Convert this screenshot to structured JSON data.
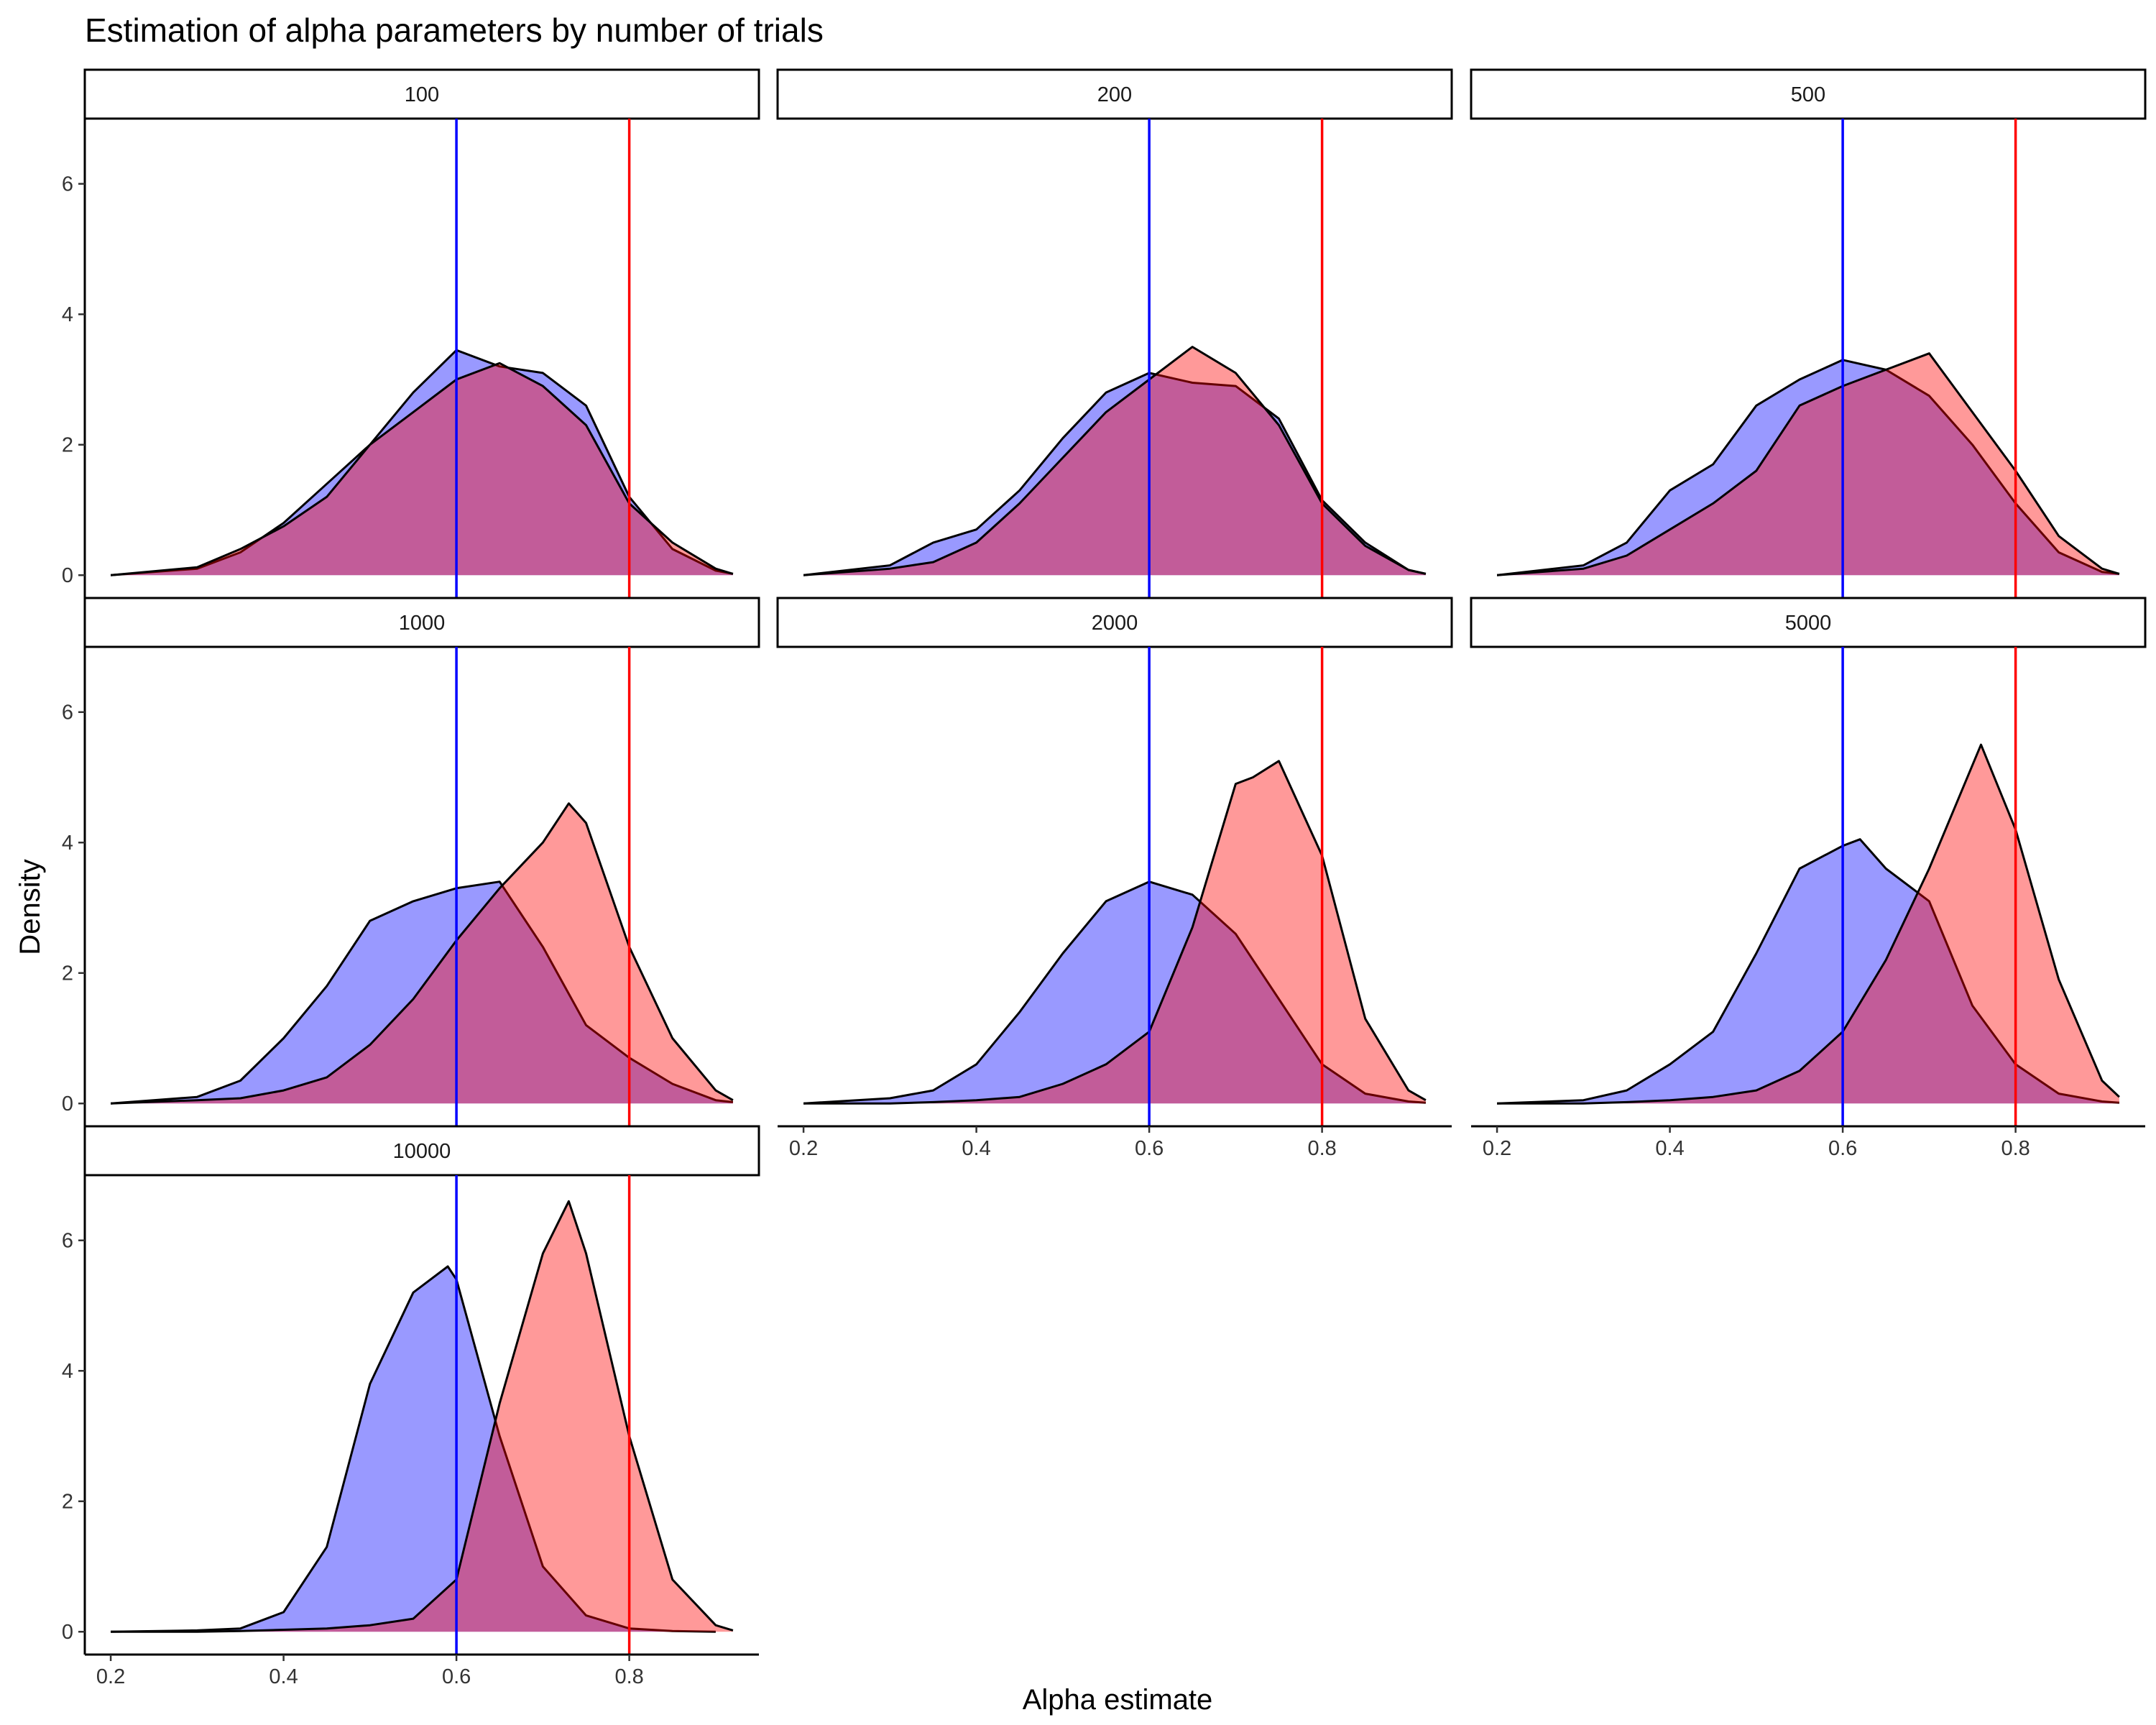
{
  "chart_data": {
    "type": "area",
    "title": "Estimation of alpha parameters by number of trials",
    "xlabel": "Alpha estimate",
    "ylabel": "Density",
    "xlim": [
      0.17,
      0.95
    ],
    "ylim": [
      -0.35,
      7
    ],
    "x_ticks": [
      0.2,
      0.4,
      0.6,
      0.8
    ],
    "y_ticks": [
      0,
      2,
      4,
      6
    ],
    "grid": false,
    "fill_colors": {
      "blue": "#0000ff",
      "red": "#ff0000"
    },
    "fill_opacity": 0.4,
    "reference_lines": [
      {
        "x": 0.6,
        "color": "#0000ff"
      },
      {
        "x": 0.8,
        "color": "#ff0000"
      }
    ],
    "panels": [
      {
        "label": "100",
        "blue": [
          [
            0.2,
            0
          ],
          [
            0.3,
            0.1
          ],
          [
            0.35,
            0.35
          ],
          [
            0.4,
            0.8
          ],
          [
            0.45,
            1.4
          ],
          [
            0.5,
            2.0
          ],
          [
            0.55,
            2.8
          ],
          [
            0.6,
            3.45
          ],
          [
            0.65,
            3.2
          ],
          [
            0.7,
            3.1
          ],
          [
            0.75,
            2.6
          ],
          [
            0.8,
            1.2
          ],
          [
            0.85,
            0.4
          ],
          [
            0.9,
            0.07
          ],
          [
            0.92,
            0.02
          ]
        ],
        "red": [
          [
            0.2,
            0
          ],
          [
            0.3,
            0.12
          ],
          [
            0.35,
            0.4
          ],
          [
            0.4,
            0.75
          ],
          [
            0.45,
            1.2
          ],
          [
            0.5,
            2.0
          ],
          [
            0.55,
            2.5
          ],
          [
            0.6,
            3.0
          ],
          [
            0.65,
            3.25
          ],
          [
            0.7,
            2.9
          ],
          [
            0.75,
            2.3
          ],
          [
            0.8,
            1.1
          ],
          [
            0.85,
            0.5
          ],
          [
            0.9,
            0.1
          ],
          [
            0.92,
            0.02
          ]
        ]
      },
      {
        "label": "200",
        "blue": [
          [
            0.2,
            0
          ],
          [
            0.3,
            0.15
          ],
          [
            0.35,
            0.5
          ],
          [
            0.4,
            0.7
          ],
          [
            0.45,
            1.3
          ],
          [
            0.5,
            2.1
          ],
          [
            0.55,
            2.8
          ],
          [
            0.6,
            3.1
          ],
          [
            0.65,
            2.95
          ],
          [
            0.7,
            2.9
          ],
          [
            0.75,
            2.4
          ],
          [
            0.8,
            1.15
          ],
          [
            0.85,
            0.5
          ],
          [
            0.9,
            0.08
          ],
          [
            0.92,
            0.02
          ]
        ],
        "red": [
          [
            0.2,
            0
          ],
          [
            0.3,
            0.1
          ],
          [
            0.35,
            0.2
          ],
          [
            0.4,
            0.5
          ],
          [
            0.45,
            1.1
          ],
          [
            0.5,
            1.8
          ],
          [
            0.55,
            2.5
          ],
          [
            0.6,
            3.0
          ],
          [
            0.65,
            3.5
          ],
          [
            0.7,
            3.1
          ],
          [
            0.75,
            2.3
          ],
          [
            0.8,
            1.1
          ],
          [
            0.85,
            0.45
          ],
          [
            0.9,
            0.08
          ],
          [
            0.92,
            0.02
          ]
        ]
      },
      {
        "label": "500",
        "blue": [
          [
            0.2,
            0
          ],
          [
            0.3,
            0.15
          ],
          [
            0.35,
            0.5
          ],
          [
            0.4,
            1.3
          ],
          [
            0.45,
            1.7
          ],
          [
            0.5,
            2.6
          ],
          [
            0.55,
            3.0
          ],
          [
            0.6,
            3.3
          ],
          [
            0.65,
            3.15
          ],
          [
            0.7,
            2.75
          ],
          [
            0.75,
            2.0
          ],
          [
            0.8,
            1.1
          ],
          [
            0.85,
            0.35
          ],
          [
            0.9,
            0.05
          ],
          [
            0.92,
            0.02
          ]
        ],
        "red": [
          [
            0.2,
            0
          ],
          [
            0.3,
            0.1
          ],
          [
            0.35,
            0.3
          ],
          [
            0.4,
            0.7
          ],
          [
            0.45,
            1.1
          ],
          [
            0.5,
            1.6
          ],
          [
            0.55,
            2.6
          ],
          [
            0.6,
            2.9
          ],
          [
            0.65,
            3.15
          ],
          [
            0.7,
            3.4
          ],
          [
            0.75,
            2.5
          ],
          [
            0.8,
            1.6
          ],
          [
            0.85,
            0.6
          ],
          [
            0.9,
            0.1
          ],
          [
            0.92,
            0.02
          ]
        ]
      },
      {
        "label": "1000",
        "blue": [
          [
            0.2,
            0
          ],
          [
            0.3,
            0.1
          ],
          [
            0.35,
            0.35
          ],
          [
            0.4,
            1.0
          ],
          [
            0.45,
            1.8
          ],
          [
            0.5,
            2.8
          ],
          [
            0.55,
            3.1
          ],
          [
            0.6,
            3.3
          ],
          [
            0.65,
            3.4
          ],
          [
            0.7,
            2.4
          ],
          [
            0.75,
            1.2
          ],
          [
            0.8,
            0.7
          ],
          [
            0.85,
            0.3
          ],
          [
            0.9,
            0.05
          ],
          [
            0.92,
            0.02
          ]
        ],
        "red": [
          [
            0.2,
            0
          ],
          [
            0.3,
            0.05
          ],
          [
            0.35,
            0.08
          ],
          [
            0.4,
            0.2
          ],
          [
            0.45,
            0.4
          ],
          [
            0.5,
            0.9
          ],
          [
            0.55,
            1.6
          ],
          [
            0.6,
            2.5
          ],
          [
            0.65,
            3.3
          ],
          [
            0.7,
            4.0
          ],
          [
            0.73,
            4.6
          ],
          [
            0.75,
            4.3
          ],
          [
            0.8,
            2.4
          ],
          [
            0.85,
            1.0
          ],
          [
            0.9,
            0.2
          ],
          [
            0.92,
            0.05
          ]
        ]
      },
      {
        "label": "2000",
        "blue": [
          [
            0.2,
            0
          ],
          [
            0.3,
            0.08
          ],
          [
            0.35,
            0.2
          ],
          [
            0.4,
            0.6
          ],
          [
            0.45,
            1.4
          ],
          [
            0.5,
            2.3
          ],
          [
            0.55,
            3.1
          ],
          [
            0.6,
            3.4
          ],
          [
            0.65,
            3.2
          ],
          [
            0.7,
            2.6
          ],
          [
            0.75,
            1.6
          ],
          [
            0.8,
            0.6
          ],
          [
            0.85,
            0.15
          ],
          [
            0.9,
            0.03
          ],
          [
            0.92,
            0.01
          ]
        ],
        "red": [
          [
            0.2,
            0
          ],
          [
            0.3,
            0
          ],
          [
            0.35,
            0.02
          ],
          [
            0.4,
            0.05
          ],
          [
            0.45,
            0.1
          ],
          [
            0.5,
            0.3
          ],
          [
            0.55,
            0.6
          ],
          [
            0.6,
            1.1
          ],
          [
            0.65,
            2.7
          ],
          [
            0.7,
            4.9
          ],
          [
            0.72,
            5.0
          ],
          [
            0.75,
            5.25
          ],
          [
            0.8,
            3.8
          ],
          [
            0.85,
            1.3
          ],
          [
            0.9,
            0.2
          ],
          [
            0.92,
            0.05
          ]
        ]
      },
      {
        "label": "5000",
        "blue": [
          [
            0.2,
            0
          ],
          [
            0.3,
            0.05
          ],
          [
            0.35,
            0.2
          ],
          [
            0.4,
            0.6
          ],
          [
            0.45,
            1.1
          ],
          [
            0.5,
            2.3
          ],
          [
            0.55,
            3.6
          ],
          [
            0.6,
            3.95
          ],
          [
            0.62,
            4.05
          ],
          [
            0.65,
            3.6
          ],
          [
            0.7,
            3.1
          ],
          [
            0.75,
            1.5
          ],
          [
            0.8,
            0.6
          ],
          [
            0.85,
            0.15
          ],
          [
            0.9,
            0.03
          ],
          [
            0.92,
            0.01
          ]
        ],
        "red": [
          [
            0.2,
            0
          ],
          [
            0.3,
            0
          ],
          [
            0.35,
            0.02
          ],
          [
            0.4,
            0.05
          ],
          [
            0.45,
            0.1
          ],
          [
            0.5,
            0.2
          ],
          [
            0.55,
            0.5
          ],
          [
            0.6,
            1.1
          ],
          [
            0.65,
            2.2
          ],
          [
            0.7,
            3.6
          ],
          [
            0.76,
            5.5
          ],
          [
            0.8,
            4.2
          ],
          [
            0.85,
            1.9
          ],
          [
            0.9,
            0.35
          ],
          [
            0.92,
            0.1
          ]
        ]
      },
      {
        "label": "10000",
        "blue": [
          [
            0.2,
            0
          ],
          [
            0.3,
            0.02
          ],
          [
            0.35,
            0.05
          ],
          [
            0.4,
            0.3
          ],
          [
            0.45,
            1.3
          ],
          [
            0.5,
            3.8
          ],
          [
            0.55,
            5.2
          ],
          [
            0.59,
            5.6
          ],
          [
            0.6,
            5.4
          ],
          [
            0.65,
            3.0
          ],
          [
            0.7,
            1.0
          ],
          [
            0.75,
            0.25
          ],
          [
            0.8,
            0.05
          ],
          [
            0.85,
            0.01
          ],
          [
            0.9,
            0
          ]
        ],
        "red": [
          [
            0.2,
            0
          ],
          [
            0.3,
            0
          ],
          [
            0.35,
            0.01
          ],
          [
            0.4,
            0.03
          ],
          [
            0.45,
            0.05
          ],
          [
            0.5,
            0.1
          ],
          [
            0.55,
            0.2
          ],
          [
            0.6,
            0.8
          ],
          [
            0.65,
            3.5
          ],
          [
            0.7,
            5.8
          ],
          [
            0.73,
            6.6
          ],
          [
            0.75,
            5.8
          ],
          [
            0.8,
            3.0
          ],
          [
            0.85,
            0.8
          ],
          [
            0.9,
            0.1
          ],
          [
            0.92,
            0.02
          ]
        ]
      }
    ]
  }
}
